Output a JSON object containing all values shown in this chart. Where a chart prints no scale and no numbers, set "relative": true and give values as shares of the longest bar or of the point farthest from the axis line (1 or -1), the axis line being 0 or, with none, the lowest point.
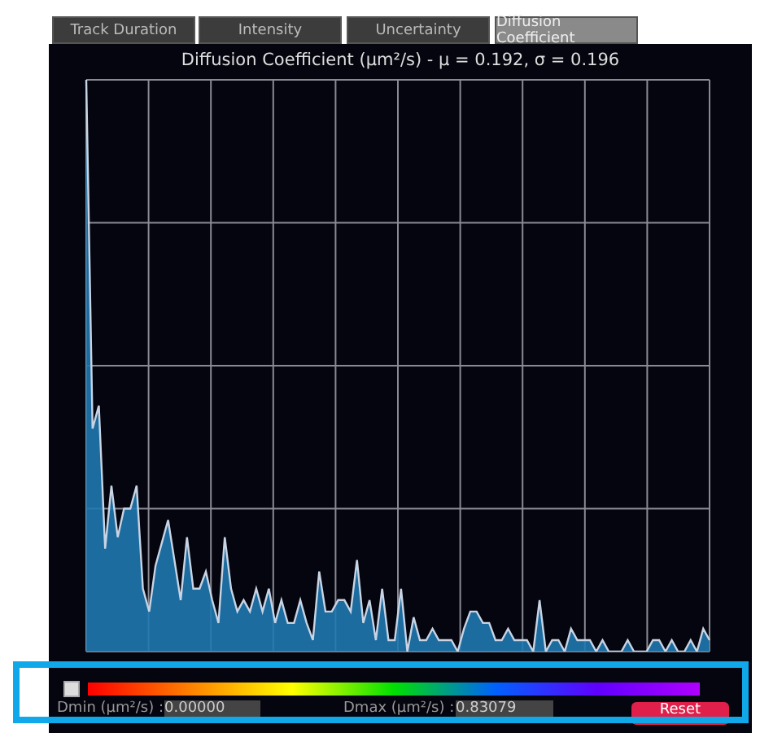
{
  "chart_data": {
    "type": "area",
    "title": "Diffusion Coefficient (µm²/s) - μ = 0.192, σ = 0.196",
    "relative": true,
    "grid": true,
    "legend": false,
    "annotations": [
      "Track Duration",
      "Intensity",
      "Uncertainty",
      "Diffusion Coefficient",
      "Dmin (µm²/s) :",
      "0.00000",
      "Dmax (µm²/s) :",
      "0.83079",
      "Reset"
    ],
    "categories": [
      null,
      null,
      null,
      null,
      null,
      null,
      null,
      null,
      null,
      null,
      null,
      null,
      null,
      null,
      null,
      null,
      null,
      null,
      null,
      null,
      null,
      null,
      null,
      null,
      null,
      null,
      null,
      null,
      null,
      null,
      null,
      null,
      null,
      null,
      null,
      null,
      null,
      null,
      null,
      null,
      null,
      null,
      null,
      null,
      null,
      null,
      null,
      null,
      null,
      null,
      null,
      null,
      null,
      null,
      null,
      null,
      null,
      null,
      null,
      null,
      null,
      null,
      null,
      null,
      null,
      null,
      null,
      null,
      null,
      null,
      null,
      null,
      null,
      null,
      null,
      null,
      null,
      null,
      null,
      null,
      null,
      null,
      null,
      null,
      null,
      null,
      null,
      null,
      null,
      null,
      null,
      null,
      null,
      null,
      null,
      null,
      null,
      null,
      null,
      null
    ],
    "series": [
      {
        "color": "#1f78b0",
        "values": [
          1,
          0.39,
          0.43,
          0.18,
          0.29,
          0.2,
          0.25,
          0.25,
          0.29,
          0.11,
          0.07,
          0.15,
          0.19,
          0.23,
          0.16,
          0.09,
          0.2,
          0.11,
          0.11,
          0.14,
          0.09,
          0.05,
          0.2,
          0.11,
          0.07,
          0.09,
          0.07,
          0.11,
          0.07,
          0.11,
          0.05,
          0.09,
          0.05,
          0.05,
          0.09,
          0.05,
          0.02,
          0.14,
          0.07,
          0.07,
          0.09,
          0.09,
          0.07,
          0.16,
          0.05,
          0.09,
          0.02,
          0.11,
          0.02,
          0.02,
          0.11,
          0,
          0.06,
          0.02,
          0.02,
          0.04,
          0.02,
          0.02,
          0.02,
          0,
          0.04,
          0.07,
          0.07,
          0.05,
          0.05,
          0.02,
          0.02,
          0.04,
          0.02,
          0.02,
          0.02,
          0,
          0.09,
          0,
          0.02,
          0.02,
          0,
          0.04,
          0.02,
          0.02,
          0.02,
          0,
          0.02,
          0,
          0,
          0,
          0.02,
          0,
          0,
          0,
          0.02,
          0.02,
          0,
          0.02,
          0,
          0,
          0.02,
          0,
          0.04,
          0.02
        ]
      }
    ]
  }
}
